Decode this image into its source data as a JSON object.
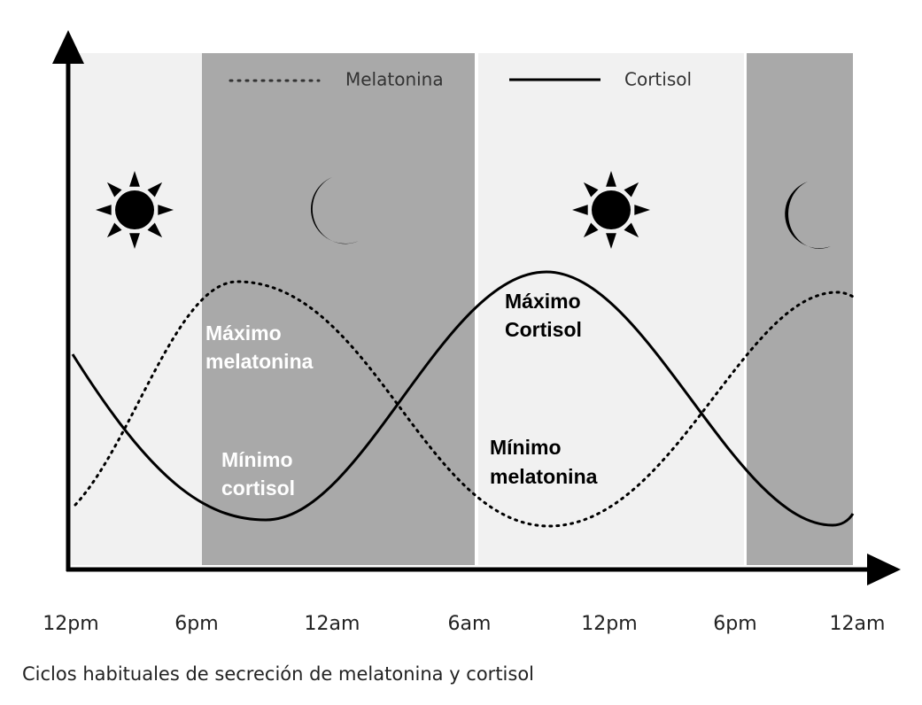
{
  "legend": {
    "melatonin": "Melatonina",
    "cortisol": "Cortisol"
  },
  "annotations": {
    "max_melatonin": [
      "Máximo",
      "melatonina"
    ],
    "min_cortisol": [
      "Mínimo",
      "cortisol"
    ],
    "max_cortisol": [
      "Máximo",
      "Cortisol"
    ],
    "min_melatonin": [
      "Mínimo",
      "melatonina"
    ]
  },
  "x_labels": [
    "12pm",
    "6pm",
    "12am",
    "6am",
    "12pm",
    "6pm",
    "12am"
  ],
  "caption": "Ciclos habituales de secreción de melatonina y cortisol"
}
